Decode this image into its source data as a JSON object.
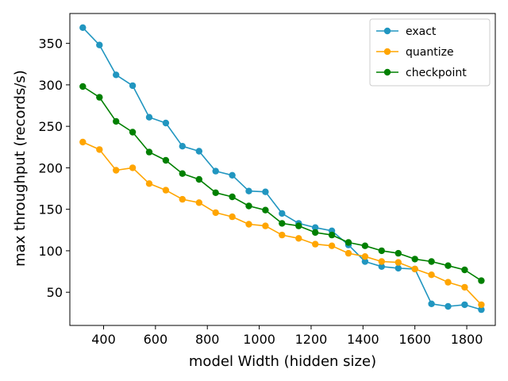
{
  "chart_data": {
    "type": "line",
    "title": "",
    "xlabel": "model Width (hidden size)",
    "ylabel": "max throughput (records/s)",
    "xlim": [
      270,
      1910
    ],
    "ylim": [
      10,
      386
    ],
    "xticks": [
      400,
      600,
      800,
      1000,
      1200,
      1400,
      1600,
      1800
    ],
    "yticks": [
      50,
      100,
      150,
      200,
      250,
      300,
      350
    ],
    "grid": false,
    "legend_position": "top-right",
    "x": [
      320,
      384,
      448,
      512,
      576,
      640,
      704,
      768,
      832,
      896,
      960,
      1024,
      1088,
      1152,
      1216,
      1280,
      1344,
      1408,
      1472,
      1536,
      1600,
      1664,
      1728,
      1792,
      1856
    ],
    "series": [
      {
        "name": "exact",
        "color": "#2196c0",
        "values": [
          369,
          348,
          312,
          299,
          261,
          254,
          226,
          220,
          196,
          191,
          172,
          171,
          145,
          133,
          128,
          124,
          107,
          87,
          81,
          79,
          78,
          36,
          33,
          35,
          29
        ]
      },
      {
        "name": "quantize",
        "color": "#ffa500",
        "values": [
          231,
          222,
          197,
          200,
          181,
          173,
          162,
          158,
          146,
          141,
          132,
          130,
          119,
          115,
          108,
          106,
          97,
          93,
          87,
          86,
          78,
          71,
          62,
          56,
          35
        ]
      },
      {
        "name": "checkpoint",
        "color": "#008000",
        "values": [
          298,
          285,
          256,
          243,
          219,
          209,
          193,
          186,
          170,
          165,
          154,
          149,
          133,
          130,
          122,
          119,
          110,
          106,
          100,
          97,
          90,
          87,
          82,
          77,
          64
        ]
      }
    ]
  }
}
